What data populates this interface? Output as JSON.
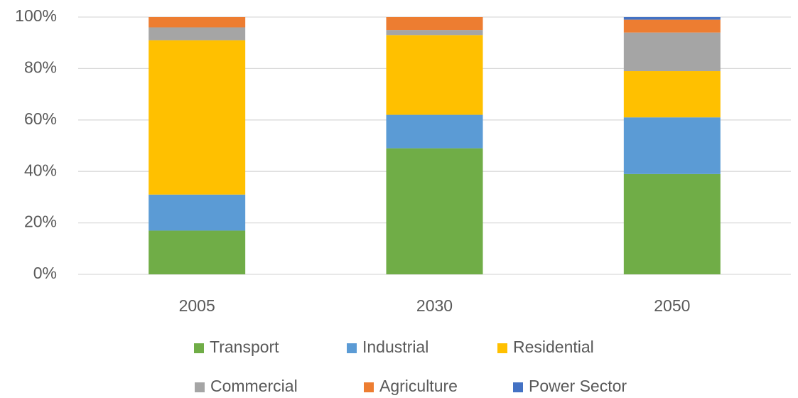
{
  "chart_data": {
    "type": "stacked_bar",
    "categories": [
      "2005",
      "2030",
      "2050"
    ],
    "series": [
      {
        "name": "Transport",
        "color": "#70ad47",
        "values": [
          17,
          49,
          39
        ]
      },
      {
        "name": "Industrial",
        "color": "#5b9bd5",
        "values": [
          14,
          13,
          22
        ]
      },
      {
        "name": "Residential",
        "color": "#ffc000",
        "values": [
          60,
          31,
          18
        ]
      },
      {
        "name": "Commercial",
        "color": "#a5a5a5",
        "values": [
          5,
          2,
          15
        ]
      },
      {
        "name": "Agriculture",
        "color": "#ed7d31",
        "values": [
          4,
          5,
          5
        ]
      },
      {
        "name": "Power Sector",
        "color": "#4472c4",
        "values": [
          0,
          0,
          1
        ]
      }
    ],
    "ylim": [
      0,
      100
    ],
    "yticks": [
      {
        "value": 0,
        "label": "0%"
      },
      {
        "value": 20,
        "label": "20%"
      },
      {
        "value": 40,
        "label": "40%"
      },
      {
        "value": 60,
        "label": "60%"
      },
      {
        "value": 80,
        "label": "80%"
      },
      {
        "value": 100,
        "label": "100%"
      }
    ],
    "grid": true
  }
}
